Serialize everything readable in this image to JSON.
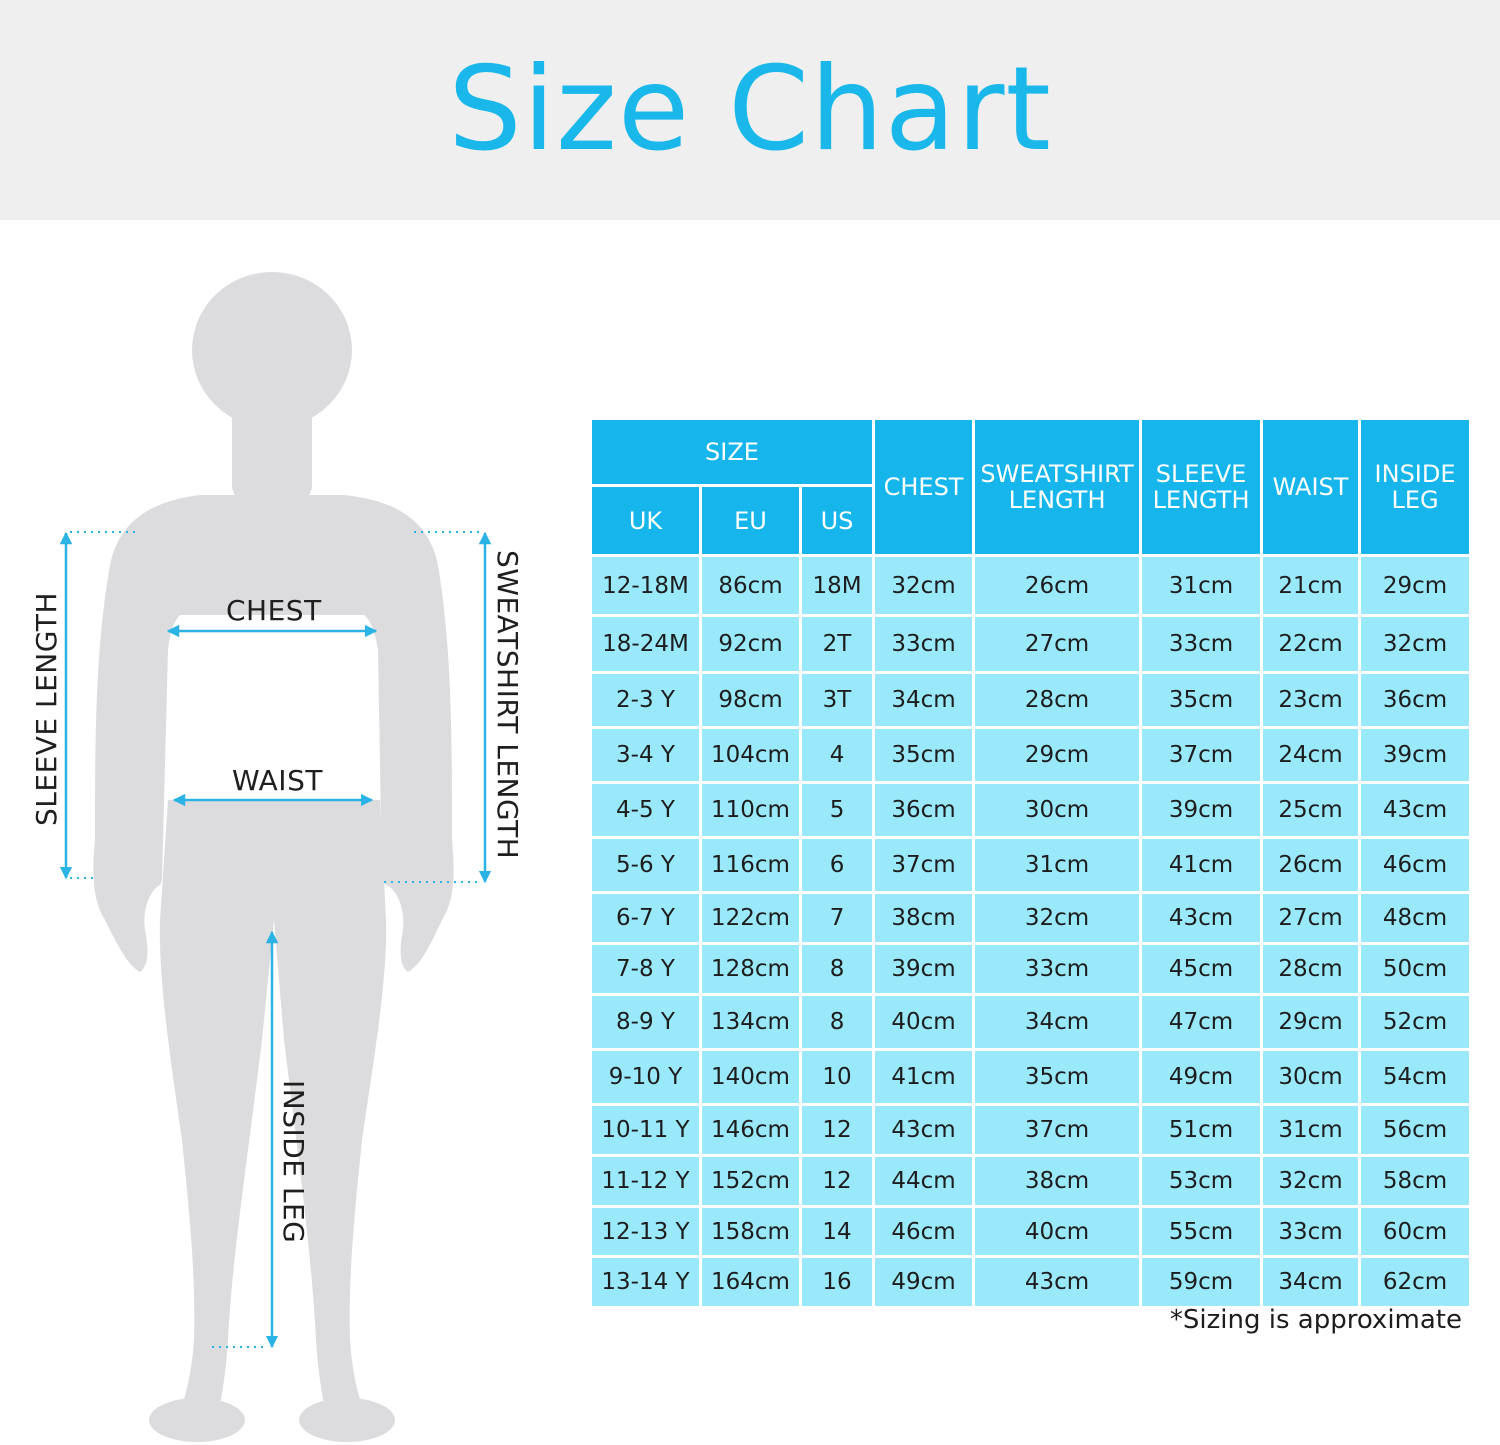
{
  "header": {
    "title": "Size Chart"
  },
  "figure": {
    "labels": {
      "chest": "CHEST",
      "waist": "WAIST",
      "sleeve_length": "SLEEVE LENGTH",
      "sweatshirt_length": "SWEATSHIRT LENGTH",
      "inside_leg": "INSIDE LEG"
    },
    "colors": {
      "silhouette": "#dcdcdf",
      "arrow": "#2ab3e4"
    }
  },
  "table": {
    "group_header": "SIZE",
    "size_headers": [
      "UK",
      "EU",
      "US"
    ],
    "measure_headers": [
      "CHEST",
      "SWEATSHIRT LENGTH",
      "SLEEVE LENGTH",
      "WAIST",
      "INSIDE LEG"
    ],
    "rows": [
      [
        "12-18M",
        "86cm",
        "18M",
        "32cm",
        "26cm",
        "31cm",
        "21cm",
        "29cm"
      ],
      [
        "18-24M",
        "92cm",
        "2T",
        "33cm",
        "27cm",
        "33cm",
        "22cm",
        "32cm"
      ],
      [
        "2-3 Y",
        "98cm",
        "3T",
        "34cm",
        "28cm",
        "35cm",
        "23cm",
        "36cm"
      ],
      [
        "3-4 Y",
        "104cm",
        "4",
        "35cm",
        "29cm",
        "37cm",
        "24cm",
        "39cm"
      ],
      [
        "4-5 Y",
        "110cm",
        "5",
        "36cm",
        "30cm",
        "39cm",
        "25cm",
        "43cm"
      ],
      [
        "5-6 Y",
        "116cm",
        "6",
        "37cm",
        "31cm",
        "41cm",
        "26cm",
        "46cm"
      ],
      [
        "6-7 Y",
        "122cm",
        "7",
        "38cm",
        "32cm",
        "43cm",
        "27cm",
        "48cm"
      ],
      [
        "7-8 Y",
        "128cm",
        "8",
        "39cm",
        "33cm",
        "45cm",
        "28cm",
        "50cm"
      ],
      [
        "8-9 Y",
        "134cm",
        "8",
        "40cm",
        "34cm",
        "47cm",
        "29cm",
        "52cm"
      ],
      [
        "9-10 Y",
        "140cm",
        "10",
        "41cm",
        "35cm",
        "49cm",
        "30cm",
        "54cm"
      ],
      [
        "10-11 Y",
        "146cm",
        "12",
        "43cm",
        "37cm",
        "51cm",
        "31cm",
        "56cm"
      ],
      [
        "11-12 Y",
        "152cm",
        "12",
        "44cm",
        "38cm",
        "53cm",
        "32cm",
        "58cm"
      ],
      [
        "12-13 Y",
        "158cm",
        "14",
        "46cm",
        "40cm",
        "55cm",
        "33cm",
        "60cm"
      ],
      [
        "13-14 Y",
        "164cm",
        "16",
        "49cm",
        "43cm",
        "59cm",
        "34cm",
        "62cm"
      ]
    ],
    "colors": {
      "header_bg": "#16b6ec",
      "cell_bg": "#99e9fb"
    }
  },
  "footnote": "*Sizing is approximate"
}
